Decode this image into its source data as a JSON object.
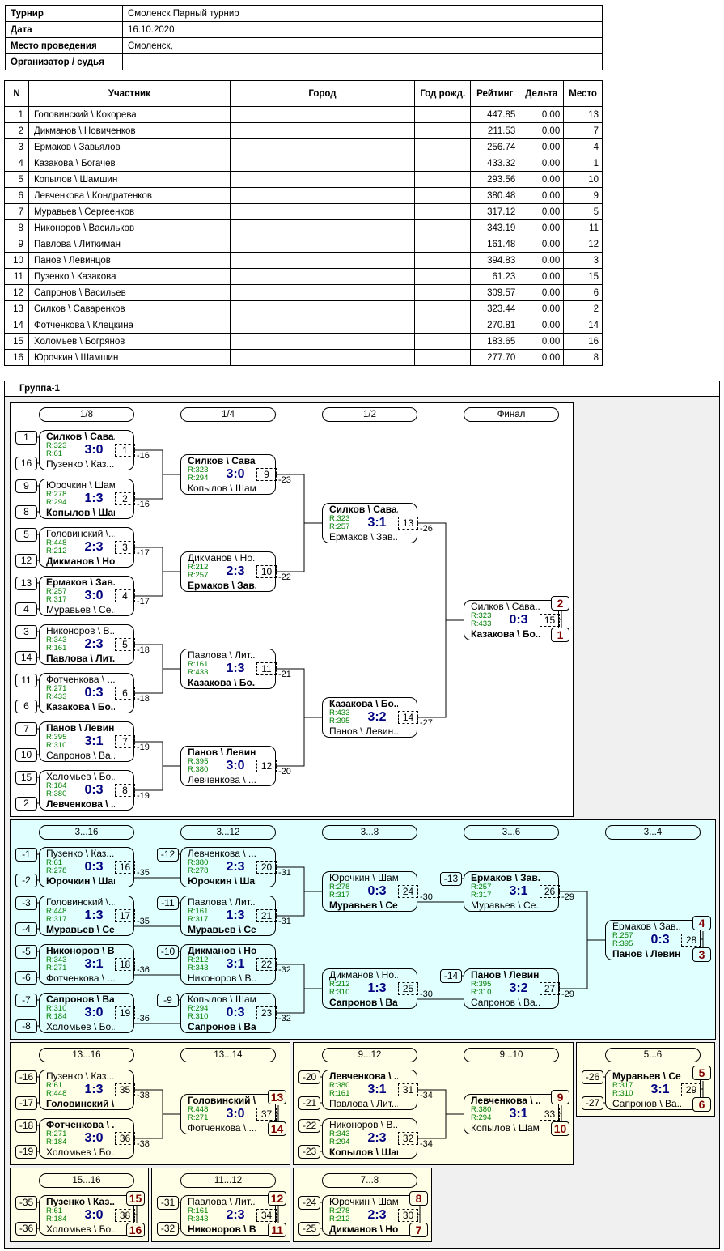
{
  "info": [
    {
      "label": "Турнир",
      "value": "Смоленск Парный турнир"
    },
    {
      "label": "Дата",
      "value": "16.10.2020"
    },
    {
      "label": "Место проведения",
      "value": "Смоленск,"
    },
    {
      "label": "Организатор / судья",
      "value": ""
    }
  ],
  "participants": {
    "columns": [
      "N",
      "Участник",
      "Город",
      "Год рожд.",
      "Рейтинг",
      "Дельта",
      "Место"
    ],
    "rows": [
      [
        "1",
        "Головинский \\ Кокорева",
        "",
        "",
        "447.85",
        "0.00",
        "13"
      ],
      [
        "2",
        "Дикманов \\ Новиченков",
        "",
        "",
        "211.53",
        "0.00",
        "7"
      ],
      [
        "3",
        "Ермаков \\ Завьялов",
        "",
        "",
        "256.74",
        "0.00",
        "4"
      ],
      [
        "4",
        "Казакова \\ Богачев",
        "",
        "",
        "433.32",
        "0.00",
        "1"
      ],
      [
        "5",
        "Копылов \\ Шамшин",
        "",
        "",
        "293.56",
        "0.00",
        "10"
      ],
      [
        "6",
        "Левченкова \\ Кондратенков",
        "",
        "",
        "380.48",
        "0.00",
        "9"
      ],
      [
        "7",
        "Муравьев \\ Сергеенков",
        "",
        "",
        "317.12",
        "0.00",
        "5"
      ],
      [
        "8",
        "Никоноров \\ Васильков",
        "",
        "",
        "343.19",
        "0.00",
        "11"
      ],
      [
        "9",
        "Павлова \\ Литкиман",
        "",
        "",
        "161.48",
        "0.00",
        "12"
      ],
      [
        "10",
        "Панов \\ Левинцов",
        "",
        "",
        "394.83",
        "0.00",
        "3"
      ],
      [
        "11",
        "Пузенко \\ Казакова",
        "",
        "",
        "61.23",
        "0.00",
        "15"
      ],
      [
        "12",
        "Сапронов \\ Васильев",
        "",
        "",
        "309.57",
        "0.00",
        "6"
      ],
      [
        "13",
        "Силков \\ Саваренков",
        "",
        "",
        "323.44",
        "0.00",
        "2"
      ],
      [
        "14",
        "Фотченкова \\ Клецкина",
        "",
        "",
        "270.81",
        "0.00",
        "14"
      ],
      [
        "15",
        "Холомьев \\ Богрянов",
        "",
        "",
        "183.65",
        "0.00",
        "16"
      ],
      [
        "16",
        "Юрочкин \\ Шамшин",
        "",
        "",
        "277.70",
        "0.00",
        "8"
      ]
    ]
  },
  "group_title": "Группа-1",
  "colors": {
    "score": "#000080",
    "rating": "#008000",
    "rank": "#800000",
    "consolation_bg": "#e0ffff",
    "placement_bg": "#ffffe8",
    "outer_bg": "#f0f0f0"
  },
  "headers": {
    "main": [
      "1/8",
      "1/4",
      "1/2",
      "Финал"
    ],
    "cons": [
      "3...16",
      "3...12",
      "3...8",
      "3...6",
      "3...4"
    ],
    "p13": [
      "13...16",
      "13...14"
    ],
    "p9": [
      "9...12",
      "9...10"
    ],
    "p5": [
      "5...6"
    ],
    "p15": [
      "15...16"
    ],
    "p11": [
      "11...12"
    ],
    "p7": [
      "7...8"
    ]
  },
  "matches": {
    "1": {
      "p1": "Силков \\ Сава...",
      "r1": "R:323",
      "p2": "Пузенко \\ Каз...",
      "r2": "R:61",
      "score": "3:0",
      "winner": 1,
      "loser_to": "-16",
      "seeds": [
        "1",
        "16"
      ]
    },
    "2": {
      "p1": "Юрочкин \\ Шам...",
      "r1": "R:278",
      "p2": "Копылов \\ Шам...",
      "r2": "R:294",
      "score": "1:3",
      "winner": 2,
      "loser_to": "-16",
      "seeds": [
        "9",
        "8"
      ]
    },
    "3": {
      "p1": "Головинский \\...",
      "r1": "R:448",
      "p2": "Дикманов \\ Но...",
      "r2": "R:212",
      "score": "2:3",
      "winner": 2,
      "loser_to": "-17",
      "seeds": [
        "5",
        "12"
      ]
    },
    "4": {
      "p1": "Ермаков \\ Зав...",
      "r1": "R:257",
      "p2": "Муравьев \\ Се...",
      "r2": "R:317",
      "score": "3:0",
      "winner": 1,
      "loser_to": "-17",
      "seeds": [
        "13",
        "4"
      ]
    },
    "5": {
      "p1": "Никоноров \\ В...",
      "r1": "R:343",
      "p2": "Павлова \\ Лит...",
      "r2": "R:161",
      "score": "2:3",
      "winner": 2,
      "loser_to": "-18",
      "seeds": [
        "3",
        "14"
      ]
    },
    "6": {
      "p1": "Фотченкова \\ ...",
      "r1": "R:271",
      "p2": "Казакова \\ Бо...",
      "r2": "R:433",
      "score": "0:3",
      "winner": 2,
      "loser_to": "-18",
      "seeds": [
        "11",
        "6"
      ]
    },
    "7": {
      "p1": "Панов \\ Левин...",
      "r1": "R:395",
      "p2": "Сапронов \\ Ва...",
      "r2": "R:310",
      "score": "3:1",
      "winner": 1,
      "loser_to": "-19",
      "seeds": [
        "7",
        "10"
      ]
    },
    "8": {
      "p1": "Холомьев \\ Бо...",
      "r1": "R:184",
      "p2": "Левченкова \\ ...",
      "r2": "R:380",
      "score": "0:3",
      "winner": 2,
      "loser_to": "-19",
      "seeds": [
        "15",
        "2"
      ]
    },
    "9": {
      "p1": "Силков \\ Сава...",
      "r1": "R:323",
      "p2": "Копылов \\ Шам...",
      "r2": "R:294",
      "score": "3:0",
      "winner": 1,
      "loser_to": "-23"
    },
    "10": {
      "p1": "Дикманов \\ Но...",
      "r1": "R:212",
      "p2": "Ермаков \\ Зав...",
      "r2": "R:257",
      "score": "2:3",
      "winner": 2,
      "loser_to": "-22"
    },
    "11": {
      "p1": "Павлова \\ Лит...",
      "r1": "R:161",
      "p2": "Казакова \\ Бо...",
      "r2": "R:433",
      "score": "1:3",
      "winner": 2,
      "loser_to": "-21"
    },
    "12": {
      "p1": "Панов \\ Левин...",
      "r1": "R:395",
      "p2": "Левченкова \\ ...",
      "r2": "R:380",
      "score": "3:0",
      "winner": 1,
      "loser_to": "-20"
    },
    "13": {
      "p1": "Силков \\ Сава...",
      "r1": "R:323",
      "p2": "Ермаков \\ Зав...",
      "r2": "R:257",
      "score": "3:1",
      "winner": 1,
      "loser_to": "-26"
    },
    "14": {
      "p1": "Казакова \\ Бо...",
      "r1": "R:433",
      "p2": "Панов \\ Левин...",
      "r2": "R:395",
      "score": "3:2",
      "winner": 1,
      "loser_to": "-27"
    },
    "15": {
      "p1": "Силков \\ Сава...",
      "r1": "R:323",
      "p2": "Казакова \\ Бо...",
      "r2": "R:433",
      "score": "0:3",
      "winner": 2,
      "ranks": [
        "2",
        "1"
      ]
    },
    "16": {
      "p1": "Пузенко \\ Каз...",
      "r1": "R:61",
      "p2": "Юрочкин \\ Шам...",
      "r2": "R:278",
      "score": "0:3",
      "winner": 2,
      "loser_to": "-35",
      "seeds": [
        "-1",
        "-2"
      ]
    },
    "17": {
      "p1": "Головинский \\...",
      "r1": "R:448",
      "p2": "Муравьев \\ Се...",
      "r2": "R:317",
      "score": "1:3",
      "winner": 2,
      "loser_to": "-35",
      "seeds": [
        "-3",
        "-4"
      ]
    },
    "18": {
      "p1": "Никоноров \\ В...",
      "r1": "R:343",
      "p2": "Фотченкова \\ ...",
      "r2": "R:271",
      "score": "3:1",
      "winner": 1,
      "loser_to": "-36",
      "seeds": [
        "-5",
        "-6"
      ]
    },
    "19": {
      "p1": "Сапронов \\ Ва...",
      "r1": "R:310",
      "p2": "Холомьев \\ Бо...",
      "r2": "R:184",
      "score": "3:0",
      "winner": 1,
      "loser_to": "-36",
      "seeds": [
        "-7",
        "-8"
      ]
    },
    "20": {
      "p1": "Левченкова \\ ...",
      "r1": "R:380",
      "p2": "Юрочкин \\ Шам...",
      "r2": "R:278",
      "score": "2:3",
      "winner": 2,
      "loser_to": "-31",
      "seeds": [
        "-12",
        null
      ]
    },
    "21": {
      "p1": "Павлова \\ Лит...",
      "r1": "R:161",
      "p2": "Муравьев \\ Се...",
      "r2": "R:317",
      "score": "1:3",
      "winner": 2,
      "loser_to": "-31",
      "seeds": [
        "-11",
        null
      ]
    },
    "22": {
      "p1": "Дикманов \\ Но...",
      "r1": "R:212",
      "p2": "Никоноров \\ В...",
      "r2": "R:343",
      "score": "3:1",
      "winner": 1,
      "loser_to": "-32",
      "seeds": [
        "-10",
        null
      ]
    },
    "23": {
      "p1": "Копылов \\ Шам...",
      "r1": "R:294",
      "p2": "Сапронов \\ Ва...",
      "r2": "R:310",
      "score": "0:3",
      "winner": 2,
      "loser_to": "-32",
      "seeds": [
        "-9",
        null
      ]
    },
    "24": {
      "p1": "Юрочкин \\ Шам...",
      "r1": "R:278",
      "p2": "Муравьев \\ Се...",
      "r2": "R:317",
      "score": "0:3",
      "winner": 2,
      "loser_to": "-30"
    },
    "25": {
      "p1": "Дикманов \\ Но...",
      "r1": "R:212",
      "p2": "Сапронов \\ Ва...",
      "r2": "R:310",
      "score": "1:3",
      "winner": 2,
      "loser_to": "-30"
    },
    "26": {
      "p1": "Ермаков \\ Зав...",
      "r1": "R:257",
      "p2": "Муравьев \\ Се...",
      "r2": "R:317",
      "score": "3:1",
      "winner": 1,
      "loser_to": "-29",
      "seeds": [
        "-13",
        null
      ]
    },
    "27": {
      "p1": "Панов \\ Левин...",
      "r1": "R:395",
      "p2": "Сапронов \\ Ва...",
      "r2": "R:310",
      "score": "3:2",
      "winner": 1,
      "loser_to": "-29",
      "seeds": [
        "-14",
        null
      ]
    },
    "28": {
      "p1": "Ермаков \\ Зав...",
      "r1": "R:257",
      "p2": "Панов \\ Левин...",
      "r2": "R:395",
      "score": "0:3",
      "winner": 2,
      "ranks": [
        "4",
        "3"
      ]
    },
    "29": {
      "p1": "Муравьев \\ Се...",
      "r1": "R:317",
      "p2": "Сапронов \\ Ва...",
      "r2": "R:310",
      "score": "3:1",
      "winner": 1,
      "seeds": [
        "-26",
        "-27"
      ],
      "ranks": [
        "5",
        "6"
      ]
    },
    "30": {
      "p1": "Юрочкин \\ Шам...",
      "r1": "R:278",
      "p2": "Дикманов \\ Но...",
      "r2": "R:212",
      "score": "2:3",
      "winner": 2,
      "seeds": [
        "-24",
        "-25"
      ],
      "ranks": [
        "8",
        "7"
      ]
    },
    "31": {
      "p1": "Левченкова \\ ...",
      "r1": "R:380",
      "p2": "Павлова \\ Лит...",
      "r2": "R:161",
      "score": "3:1",
      "winner": 1,
      "loser_to": "-34",
      "seeds": [
        "-20",
        "-21"
      ]
    },
    "32": {
      "p1": "Никоноров \\ В...",
      "r1": "R:343",
      "p2": "Копылов \\ Шам...",
      "r2": "R:294",
      "score": "2:3",
      "winner": 2,
      "loser_to": "-34",
      "seeds": [
        "-22",
        "-23"
      ]
    },
    "33": {
      "p1": "Левченкова \\ ...",
      "r1": "R:380",
      "p2": "Копылов \\ Шам...",
      "r2": "R:294",
      "score": "3:1",
      "winner": 1,
      "ranks": [
        "9",
        "10"
      ]
    },
    "34": {
      "p1": "Павлова \\ Лит...",
      "r1": "R:161",
      "p2": "Никоноров \\ В...",
      "r2": "R:343",
      "score": "2:3",
      "winner": 2,
      "seeds": [
        "-31",
        "-32"
      ],
      "ranks": [
        "12",
        "11"
      ]
    },
    "35": {
      "p1": "Пузенко \\ Каз...",
      "r1": "R:61",
      "p2": "Головинский \\...",
      "r2": "R:448",
      "score": "1:3",
      "winner": 2,
      "loser_to": "-38",
      "seeds": [
        "-16",
        "-17"
      ]
    },
    "36": {
      "p1": "Фотченкова \\ ...",
      "r1": "R:271",
      "p2": "Холомьев \\ Бо...",
      "r2": "R:184",
      "score": "3:0",
      "winner": 1,
      "loser_to": "-38",
      "seeds": [
        "-18",
        "-19"
      ]
    },
    "37": {
      "p1": "Головинский \\...",
      "r1": "R:448",
      "p2": "Фотченкова \\ ...",
      "r2": "R:271",
      "score": "3:0",
      "winner": 1,
      "ranks": [
        "13",
        "14"
      ]
    },
    "38": {
      "p1": "Пузенко \\ Каз...",
      "r1": "R:61",
      "p2": "Холомьев \\ Бо...",
      "r2": "R:184",
      "score": "3:0",
      "winner": 1,
      "seeds": [
        "-35",
        "-36"
      ],
      "ranks": [
        "15",
        "16"
      ]
    }
  }
}
